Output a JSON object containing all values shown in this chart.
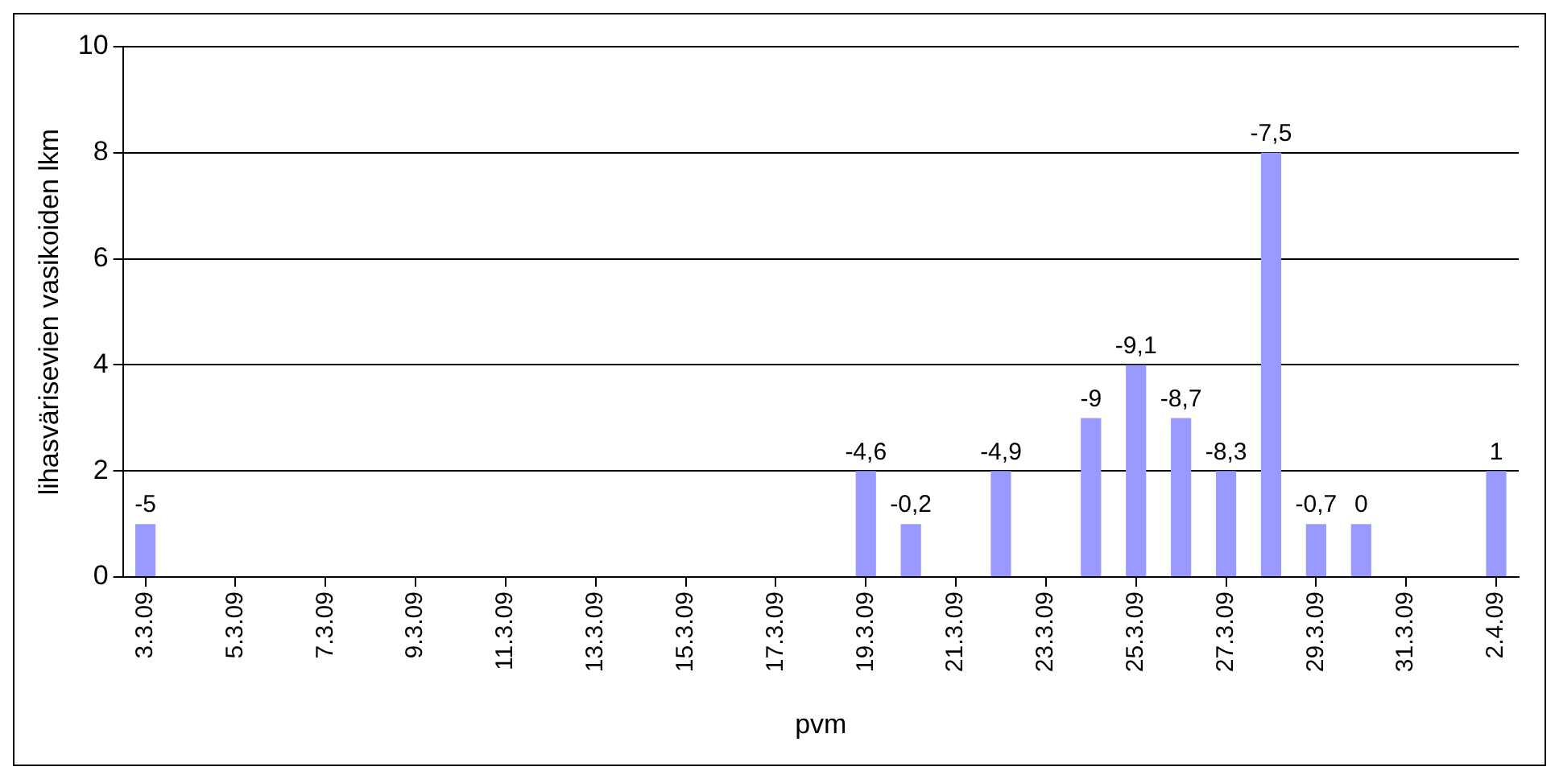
{
  "chart_data": {
    "type": "bar",
    "xlabel": "pvm",
    "ylabel": "lihasvärisevien vasikoiden lkm",
    "x": [
      "--03-03",
      "--03-04",
      "--03-05",
      "--03-06",
      "--03-07",
      "--03-08",
      "--03-09",
      "--03-10",
      "--03-11",
      "--03-12",
      "--03-13",
      "--03-14",
      "--03-15",
      "--03-16",
      "--03-17",
      "--03-18",
      "--03-19",
      "--03-20",
      "--03-21",
      "--03-22",
      "--03-23",
      "--03-24",
      "--03-25",
      "--03-26",
      "--03-27",
      "--03-28",
      "--03-29",
      "--03-30",
      "--03-31",
      "--04-01",
      "--04-02"
    ],
    "values": [
      1,
      0,
      0,
      0,
      0,
      0,
      0,
      0,
      0,
      0,
      0,
      0,
      0,
      0,
      0,
      0,
      2,
      1,
      0,
      2,
      0,
      3,
      4,
      3,
      2,
      8,
      1,
      1,
      0,
      0,
      2
    ],
    "xlim": [
      "--03-02T12:00",
      "--04-02T12:00"
    ],
    "xticks": [
      {
        "value": "--03-03",
        "label": "3.3.09"
      },
      {
        "value": "--03-05",
        "label": "5.3.09"
      },
      {
        "value": "--03-07",
        "label": "7.3.09"
      },
      {
        "value": "--03-09",
        "label": "9.3.09"
      },
      {
        "value": "--03-11",
        "label": "11.3.09"
      },
      {
        "value": "--03-13",
        "label": "13.3.09"
      },
      {
        "value": "--03-15",
        "label": "15.3.09"
      },
      {
        "value": "--03-17",
        "label": "17.3.09"
      },
      {
        "value": "--03-19",
        "label": "19.3.09"
      },
      {
        "value": "--03-21",
        "label": "21.3.09"
      },
      {
        "value": "--03-23",
        "label": "23.3.09"
      },
      {
        "value": "--03-25",
        "label": "25.3.09"
      },
      {
        "value": "--03-27",
        "label": "27.3.09"
      },
      {
        "value": "--03-29",
        "label": "29.3.09"
      },
      {
        "value": "--03-31",
        "label": "31.3.09"
      },
      {
        "value": "--04-02",
        "label": "2.4.09"
      }
    ],
    "annotations": [
      {
        "text": "-5",
        "x": "--03-03",
        "y": 1
      },
      {
        "text": "-4,6",
        "x": "--03-19",
        "y": 2
      },
      {
        "text": "-0,2",
        "x": "--03-20",
        "y": 1
      },
      {
        "text": "-4,9",
        "x": "--03-22",
        "y": 2
      },
      {
        "text": "-9",
        "x": "--03-24",
        "y": 3
      },
      {
        "text": "-9,1",
        "x": "--03-25",
        "y": 4
      },
      {
        "text": "-8,7",
        "x": "--03-26",
        "y": 3
      },
      {
        "text": "-8,3",
        "x": "--03-27",
        "y": 2
      },
      {
        "text": "-7,5",
        "x": "--03-28",
        "y": 8
      },
      {
        "text": "-0,7",
        "x": "--03-29",
        "y": 1
      },
      {
        "text": "0",
        "x": "--03-30",
        "y": 1
      },
      {
        "text": "1",
        "x": "--04-02",
        "y": 2
      }
    ],
    "color": "#9999ff",
    "ylim": [
      0,
      10
    ],
    "yticks": [
      0,
      2,
      4,
      6,
      8,
      10
    ],
    "grid": "y",
    "legend": false
  }
}
